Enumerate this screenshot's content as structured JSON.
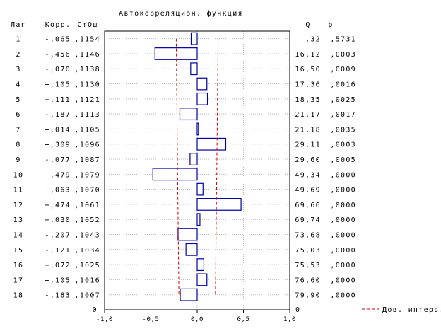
{
  "chart_data": {
    "type": "bar",
    "title": "Автокорреляцион. функция",
    "column_headers": {
      "lag": "Лаг",
      "corr": "Корр.",
      "se": "СтОш",
      "q": "Q",
      "p": "p"
    },
    "lags": [
      "1",
      "2",
      "3",
      "4",
      "5",
      "6",
      "7",
      "8",
      "9",
      "10",
      "11",
      "12",
      "13",
      "14",
      "15",
      "16",
      "17",
      "18"
    ],
    "corr_text": [
      "-,065",
      "-,456",
      "-,070",
      "+,105",
      "+,111",
      "-,187",
      "+,014",
      "+,309",
      "-,077",
      "-,479",
      "+,063",
      "+,474",
      "+,030",
      "-,207",
      "-,121",
      "+,072",
      "+,105",
      "-,183"
    ],
    "se_text": [
      ",1154",
      ",1146",
      ",1138",
      ",1130",
      ",1121",
      ",1113",
      ",1105",
      ",1096",
      ",1087",
      ",1079",
      ",1070",
      ",1061",
      ",1052",
      ",1043",
      ",1034",
      ",1025",
      ",1016",
      ",1007"
    ],
    "q_text": [
      ",32",
      "16,12",
      "16,50",
      "17,36",
      "18,35",
      "21,17",
      "21,18",
      "29,11",
      "29,60",
      "49,34",
      "49,69",
      "69,66",
      "69,74",
      "73,68",
      "75,03",
      "75,53",
      "76,60",
      "79,90"
    ],
    "p_text": [
      ",5731",
      ",0003",
      ",0009",
      ",0016",
      ",0025",
      ",0017",
      ",0035",
      ",0003",
      ",0005",
      ",0000",
      ",0000",
      ",0000",
      ",0000",
      ",0000",
      ",0000",
      ",0000",
      ",0000",
      ",0000"
    ],
    "values": [
      -0.065,
      -0.456,
      -0.07,
      0.105,
      0.111,
      -0.187,
      0.014,
      0.309,
      -0.077,
      -0.479,
      0.063,
      0.474,
      0.03,
      -0.207,
      -0.121,
      0.072,
      0.105,
      -0.183
    ],
    "std_errors": [
      0.1154,
      0.1146,
      0.1138,
      0.113,
      0.1121,
      0.1113,
      0.1105,
      0.1096,
      0.1087,
      0.1079,
      0.107,
      0.1061,
      0.1052,
      0.1043,
      0.1034,
      0.1025,
      0.1016,
      0.1007
    ],
    "confidence_multiplier": 1.96,
    "xlim": [
      -1.0,
      1.0
    ],
    "x_ticks": [
      -1.0,
      -0.5,
      0.0,
      0.5,
      1.0
    ],
    "x_tick_labels": [
      "-1,0",
      "-0,5",
      "0,0",
      "0,5",
      "1,0"
    ],
    "zero_row_label": "0",
    "legend": {
      "label": "Дов. интерв.",
      "placement": "bottom-right"
    },
    "grid": true,
    "colors": {
      "bar": "#0000a0",
      "confidence": "#d00000",
      "grid": "#b8b8b8"
    }
  }
}
